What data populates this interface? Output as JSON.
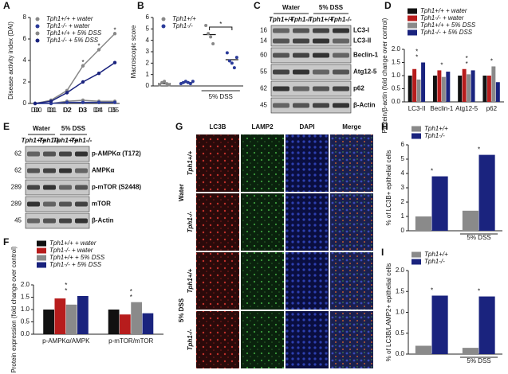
{
  "chart_data": [
    {
      "label": "A",
      "type": "line",
      "y_label": "Disease activity index (DAI)",
      "categories": [
        "D0",
        "D1",
        "D2",
        "D3",
        "D4",
        "D5"
      ],
      "ylim": [
        0,
        8
      ],
      "yticks": [
        0,
        2,
        4,
        6,
        8
      ],
      "series": [
        {
          "name": "Tph1+/+ + water",
          "color": "#888888",
          "values": [
            0,
            0,
            0.2,
            0.3,
            0.2,
            0.2
          ]
        },
        {
          "name": "Tph1-/- + water",
          "color": "#2b3b9a",
          "values": [
            0,
            0,
            0.1,
            0.1,
            0.1,
            0.1
          ]
        },
        {
          "name": "Tph1+/+ + 5% DSS",
          "color": "#888888",
          "values": [
            0,
            0.3,
            1.2,
            3.5,
            5,
            6.5
          ]
        },
        {
          "name": "Tph1-/- + 5% DSS",
          "color": "#1a237e",
          "values": [
            0,
            0.2,
            1,
            2,
            2.8,
            3.8
          ]
        }
      ],
      "annotations": [
        {
          "text": "*",
          "category": 3
        },
        {
          "text": "*",
          "category": 4
        },
        {
          "text": "*",
          "category": 5
        }
      ]
    },
    {
      "label": "B",
      "type": "dot",
      "y_label": "Macroscopic score",
      "categories": [
        null,
        null,
        null,
        null
      ],
      "group_label": "5% DSS",
      "ylim": [
        0,
        6
      ],
      "yticks": [
        0,
        1,
        2,
        3,
        4,
        5,
        6
      ],
      "series": [
        {
          "name": "Tph1+/+",
          "color": "#888888",
          "values": [
            0.2,
            null,
            4.5,
            null
          ],
          "points": [
            [
              0.1,
              0.3,
              0.4,
              0.2,
              0.1
            ],
            null,
            [
              5.3,
              4.6,
              4.3,
              3.7
            ],
            null
          ]
        },
        {
          "name": "Tph1-/-",
          "color": "#2b3b9a",
          "values": [
            null,
            0.3,
            null,
            2.3
          ],
          "points": [
            null,
            [
              0.2,
              0.3,
              0.4,
              0.3,
              0.2,
              0.4
            ],
            null,
            [
              2.9,
              2.2,
              2.0,
              1.6,
              2.5
            ]
          ]
        }
      ],
      "annotations": [
        {
          "text": "*",
          "category": 2
        }
      ]
    },
    {
      "label": "D",
      "type": "bar",
      "y_label": "Protein/β-actin (fold change over control)",
      "categories": [
        "LC3-II",
        "Beclin-1",
        "Atg12-5",
        "p62"
      ],
      "ylim": [
        0,
        2
      ],
      "yticks": [
        {
          "value": 0,
          "label": "0.0"
        },
        0.5,
        {
          "value": 1,
          "label": "1.0"
        },
        1.5,
        {
          "value": 2,
          "label": "2.0"
        }
      ],
      "series": [
        {
          "name": "Tph1+/+ + water",
          "color": "#111111",
          "values": [
            1,
            1,
            1,
            1
          ]
        },
        {
          "name": "Tph1-/- + water",
          "color": "#b71c1c",
          "values": [
            1.25,
            1.2,
            1.25,
            1
          ]
        },
        {
          "name": "Tph1+/+ + 5% DSS",
          "color": "#8a8a8a",
          "values": [
            0.85,
            0.95,
            1.05,
            1.35
          ]
        },
        {
          "name": "Tph1-/- + 5% DSS",
          "color": "#1a237e",
          "values": [
            1.5,
            1.15,
            1.2,
            0.75
          ]
        }
      ],
      "annotations": [
        {
          "text": "*",
          "category": 0
        },
        {
          "text": "*",
          "category": 0
        },
        {
          "text": "*",
          "category": 1
        },
        {
          "text": "*",
          "category": 2
        },
        {
          "text": "*",
          "category": 2
        },
        {
          "text": "*",
          "category": 3
        }
      ]
    },
    {
      "label": "F",
      "type": "bar",
      "y_label": "Protein expression (fold change over control)",
      "categories": [
        "p-AMPKα/AMPK",
        "p-mTOR/mTOR"
      ],
      "ylim": [
        0,
        2
      ],
      "yticks": [
        {
          "value": 0,
          "label": "0.0"
        },
        0.5,
        {
          "value": 1,
          "label": "1.0"
        },
        1.5,
        {
          "value": 2,
          "label": "2.0"
        }
      ],
      "series": [
        {
          "name": "Tph1+/+ + water",
          "color": "#111111",
          "values": [
            1,
            1
          ]
        },
        {
          "name": "Tph1-/- + water",
          "color": "#b71c1c",
          "values": [
            1.45,
            0.8
          ]
        },
        {
          "name": "Tph1+/+ + 5% DSS",
          "color": "#8a8a8a",
          "values": [
            1.2,
            1.3
          ]
        },
        {
          "name": "Tph1-/- + 5% DSS",
          "color": "#1a237e",
          "values": [
            1.55,
            0.85
          ]
        }
      ],
      "annotations": [
        {
          "text": "*",
          "category": 0
        },
        {
          "text": "*",
          "category": 0
        },
        {
          "text": "*",
          "category": 1
        },
        {
          "text": "*",
          "category": 1
        }
      ]
    },
    {
      "label": "H",
      "type": "bar",
      "y_label": "% of LC3B+ epithelial cells",
      "categories": [
        null,
        "5% DSS"
      ],
      "ylim": [
        0,
        6
      ],
      "yticks": [
        0,
        1,
        2,
        3,
        4,
        5,
        6
      ],
      "series": [
        {
          "name": "Tph1+/+",
          "color": "#8a8a8a",
          "values": [
            1,
            1.4
          ]
        },
        {
          "name": "Tph1-/-",
          "color": "#1a237e",
          "values": [
            3.8,
            5.3
          ]
        }
      ],
      "annotations": [
        {
          "text": "*",
          "category": 0
        },
        {
          "text": "*",
          "category": 1
        }
      ]
    },
    {
      "label": "I",
      "type": "bar",
      "y_label": "% of LC3B/LAMP2+ epithelial cells",
      "categories": [
        null,
        "5% DSS"
      ],
      "ylim": [
        0,
        2
      ],
      "yticks": [
        {
          "value": 0,
          "label": "0.0"
        },
        0.5,
        {
          "value": 1,
          "label": "1.0"
        },
        1.5,
        {
          "value": 2,
          "label": "2.0"
        }
      ],
      "series": [
        {
          "name": "Tph1+/+",
          "color": "#8a8a8a",
          "values": [
            0.2,
            0.15
          ]
        },
        {
          "name": "Tph1-/-",
          "color": "#1a237e",
          "values": [
            1.4,
            1.38
          ]
        }
      ],
      "annotations": [
        {
          "text": "*",
          "category": 0
        },
        {
          "text": "*",
          "category": 1
        }
      ]
    }
  ],
  "blots": [
    {
      "label": "C",
      "conditions": [
        "Water",
        "5% DSS"
      ],
      "genotypes": [
        "Tph1+/+",
        "Tph1-/-",
        "Tph1+/+",
        "Tph1-/-"
      ],
      "rows": [
        {
          "mw": [
            "16",
            "14"
          ],
          "protein": [
            "LC3-I",
            "LC3-II"
          ]
        },
        {
          "mw": [
            "60"
          ],
          "protein": [
            "Beclin-1"
          ]
        },
        {
          "mw": [
            "55"
          ],
          "protein": [
            "Atg12-5"
          ]
        },
        {
          "mw": [
            "62"
          ],
          "protein": [
            "p62"
          ]
        },
        {
          "mw": [
            "45"
          ],
          "protein": [
            "β-Actin"
          ]
        }
      ]
    },
    {
      "label": "E",
      "conditions": [
        "Water",
        "5% DSS"
      ],
      "genotypes": [
        "Tph1+/+",
        "Tph1-/-",
        "Tph1+/+",
        "Tph1-/-"
      ],
      "rows": [
        {
          "mw": [
            "62"
          ],
          "protein": [
            "p-AMPKα (T172)"
          ]
        },
        {
          "mw": [
            "62"
          ],
          "protein": [
            "AMPKα"
          ]
        },
        {
          "mw": [
            "289"
          ],
          "protein": [
            "p-mTOR (S2448)"
          ]
        },
        {
          "mw": [
            "289"
          ],
          "protein": [
            "mTOR"
          ]
        },
        {
          "mw": [
            "45"
          ],
          "protein": [
            "β-Actin"
          ]
        }
      ]
    }
  ],
  "micrographs": {
    "label": "G",
    "columns": [
      "LC3B",
      "LAMP2",
      "DAPI",
      "Merge"
    ],
    "rows": [
      "Tph1+/+",
      "Tph1-/-",
      "Tph1+/+",
      "Tph1-/-"
    ],
    "groups": [
      "Water",
      "5% DSS"
    ]
  }
}
